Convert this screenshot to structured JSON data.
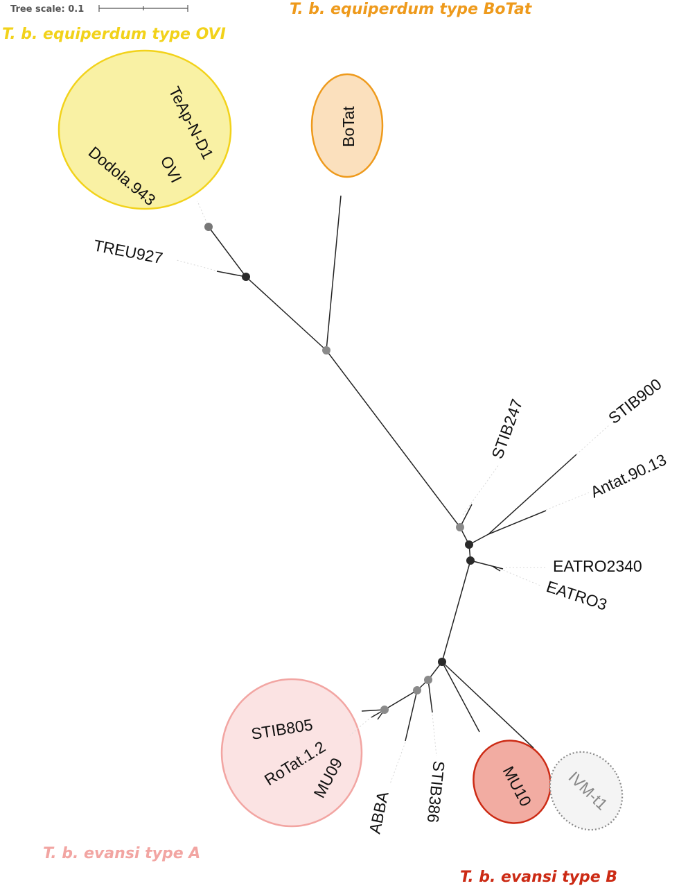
{
  "scale": {
    "label": "Tree scale: 0.1"
  },
  "groups": {
    "ovi": {
      "title": "T. b. equiperdum type OVI",
      "color": "#f2d21a",
      "fill": "#f9f1a4"
    },
    "botat": {
      "title": "T. b. equiperdum type BoTat",
      "color": "#ee9a1c",
      "fill": "#fbe0bd"
    },
    "typeA": {
      "title": "T. b. evansi type A",
      "color": "#f2a5a2",
      "fill": "#fbe3e3"
    },
    "typeB": {
      "title": "T. b. evansi type B",
      "color": "#cc2a14",
      "fill": "#f2aca2"
    },
    "ivm": {
      "color": "#888888",
      "fill": "#f4f4f4"
    }
  },
  "leaves": {
    "teap": "TeAp-N-D1",
    "ovi": "OVI",
    "dodola": "Dodola.943",
    "botat": "BoTat",
    "treu927": "TREU927",
    "stib247": "STIB247",
    "stib900": "STIB900",
    "antat": "Antat.90.13",
    "eatro2340": "EATRO2340",
    "eatro3": "EATRO3",
    "stib805": "STIB805",
    "rotat": "RoTat.1.2",
    "mu09": "MU09",
    "abba": "ABBA",
    "stib386": "STIB386",
    "mu10": "MU10",
    "ivmt1": "IVM-t1"
  }
}
